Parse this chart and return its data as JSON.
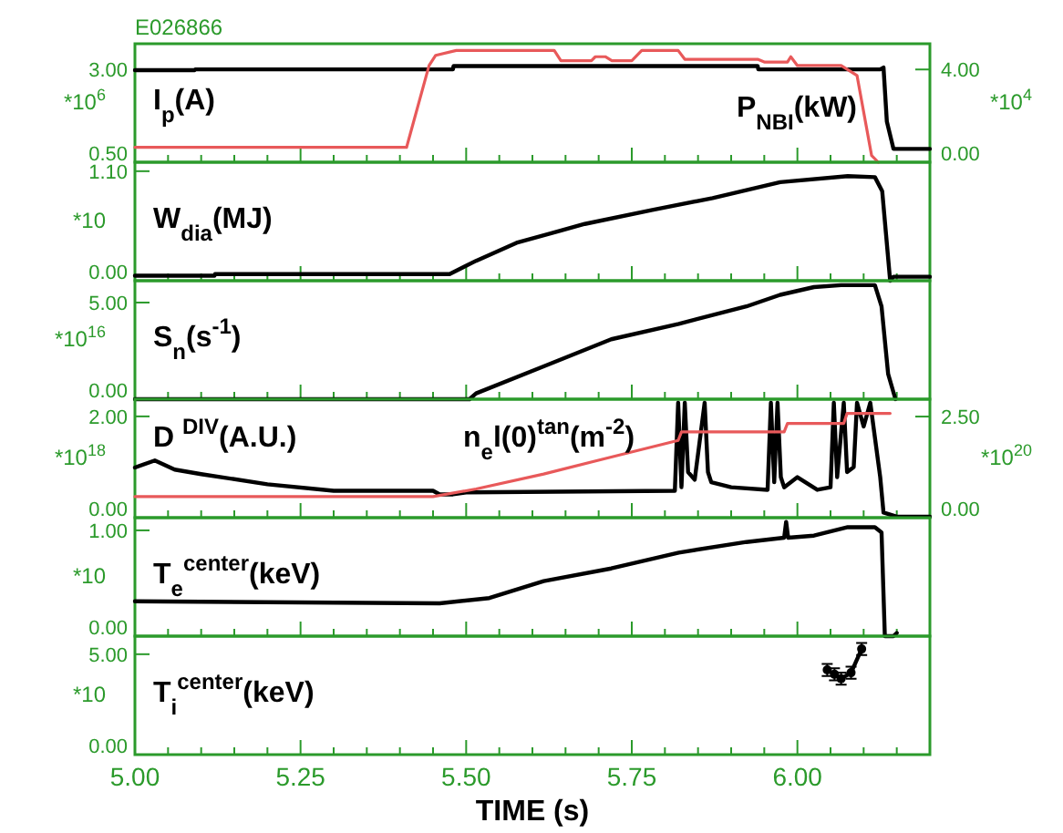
{
  "chart_data": [
    {
      "type": "line",
      "title": "E026866",
      "ylabel": "*10$^{6}$",
      "y2label": "*10$^{4}$",
      "annotations": [
        "I$_{p}$(A)",
        "P$_{NBI}$(kW)"
      ],
      "xlim": [
        5,
        6.2
      ],
      "xticks": [
        {
          "value": 5,
          "label": null
        },
        {
          "value": 5.05,
          "label": null
        },
        {
          "value": 5.1,
          "label": null
        },
        {
          "value": 5.15,
          "label": null
        },
        {
          "value": 5.2,
          "label": null
        },
        {
          "value": 5.25,
          "label": null
        },
        {
          "value": 5.3,
          "label": null
        },
        {
          "value": 5.35,
          "label": null
        },
        {
          "value": 5.4,
          "label": null
        },
        {
          "value": 5.45,
          "label": null
        },
        {
          "value": 5.5,
          "label": null
        },
        {
          "value": 5.55,
          "label": null
        },
        {
          "value": 5.6,
          "label": null
        },
        {
          "value": 5.65,
          "label": null
        },
        {
          "value": 5.7,
          "label": null
        },
        {
          "value": 5.75,
          "label": null
        },
        {
          "value": 5.8,
          "label": null
        },
        {
          "value": 5.85,
          "label": null
        },
        {
          "value": 5.9,
          "label": null
        },
        {
          "value": 5.95,
          "label": null
        },
        {
          "value": 6,
          "label": null
        },
        {
          "value": 6.05,
          "label": null
        },
        {
          "value": 6.1,
          "label": null
        },
        {
          "value": 6.15,
          "label": null
        }
      ],
      "ylim": [
        0.5,
        3.69
      ],
      "yticks": [
        {
          "value": 0.5,
          "label": "0.50"
        },
        {
          "value": 3,
          "label": "3.00"
        }
      ],
      "y2lim": [
        0,
        5.11
      ],
      "y2ticks": [
        {
          "value": 0,
          "label": "0.00"
        },
        {
          "value": 4,
          "label": "4.00"
        }
      ],
      "tick_labels": "y",
      "series": [
        {
          "color": "#000000",
          "x": [
            5.0,
            5.09,
            5.091,
            5.48,
            5.481,
            5.94,
            5.941,
            6.125,
            6.13,
            6.135,
            6.145,
            6.2
          ],
          "values": [
            2.98,
            2.98,
            3.0,
            3.0,
            3.09,
            3.09,
            3.0,
            3.0,
            3.05,
            1.6,
            0.86,
            0.86
          ]
        },
        {
          "color": "#e8595a",
          "axis": "y2",
          "x": [
            5.0,
            5.41,
            5.444,
            5.454,
            5.485,
            5.633,
            5.643,
            5.689,
            5.695,
            5.71,
            5.72,
            5.75,
            5.765,
            5.82,
            5.83,
            5.94,
            5.95,
            5.985,
            5.99,
            6.0,
            6.066,
            6.09,
            6.112,
            6.122
          ],
          "values": [
            0.64,
            0.64,
            4.17,
            4.61,
            4.82,
            4.82,
            4.38,
            4.38,
            4.55,
            4.55,
            4.38,
            4.38,
            4.82,
            4.82,
            4.44,
            4.44,
            4.32,
            4.32,
            4.55,
            4.17,
            4.17,
            3.74,
            0.29,
            0
          ]
        }
      ]
    },
    {
      "type": "line",
      "ylabel": "*10",
      "annotations": [
        "W$_{dia}$(MJ)"
      ],
      "xlim": [
        5,
        6.2
      ],
      "xticks": [
        {
          "value": 5,
          "label": null
        },
        {
          "value": 5.05,
          "label": null
        },
        {
          "value": 5.1,
          "label": null
        },
        {
          "value": 5.15,
          "label": null
        },
        {
          "value": 5.2,
          "label": null
        },
        {
          "value": 5.25,
          "label": null
        },
        {
          "value": 5.3,
          "label": null
        },
        {
          "value": 5.35,
          "label": null
        },
        {
          "value": 5.4,
          "label": null
        },
        {
          "value": 5.45,
          "label": null
        },
        {
          "value": 5.5,
          "label": null
        },
        {
          "value": 5.55,
          "label": null
        },
        {
          "value": 5.6,
          "label": null
        },
        {
          "value": 5.65,
          "label": null
        },
        {
          "value": 5.7,
          "label": null
        },
        {
          "value": 5.75,
          "label": null
        },
        {
          "value": 5.8,
          "label": null
        },
        {
          "value": 5.85,
          "label": null
        },
        {
          "value": 5.9,
          "label": null
        },
        {
          "value": 5.95,
          "label": null
        },
        {
          "value": 6,
          "label": null
        },
        {
          "value": 6.05,
          "label": null
        },
        {
          "value": 6.1,
          "label": null
        },
        {
          "value": 6.15,
          "label": null
        }
      ],
      "ylim": [
        0,
        1.19
      ],
      "yticks": [
        {
          "value": 0,
          "label": "0.00"
        },
        {
          "value": 1.1,
          "label": "1.10"
        }
      ],
      "tick_labels": "y",
      "series": [
        {
          "color": "#000000",
          "x": [
            5.0,
            5.12,
            5.121,
            5.475,
            5.515,
            5.576,
            5.679,
            5.781,
            5.872,
            5.974,
            6.076,
            6.117,
            6.128,
            6.14,
            6.145,
            6.2
          ],
          "values": [
            0.05,
            0.05,
            0.066,
            0.066,
            0.2,
            0.38,
            0.57,
            0.71,
            0.83,
            0.99,
            1.05,
            1.04,
            0.9,
            0.0,
            0.04,
            0.04
          ]
        }
      ]
    },
    {
      "type": "line",
      "ylabel": "*10$^{16}$",
      "annotations": [
        "S$_{n}$(s$^{-1}$)"
      ],
      "xlim": [
        5,
        6.2
      ],
      "xticks": [
        {
          "value": 5,
          "label": null
        },
        {
          "value": 5.05,
          "label": null
        },
        {
          "value": 5.1,
          "label": null
        },
        {
          "value": 5.15,
          "label": null
        },
        {
          "value": 5.2,
          "label": null
        },
        {
          "value": 5.25,
          "label": null
        },
        {
          "value": 5.3,
          "label": null
        },
        {
          "value": 5.35,
          "label": null
        },
        {
          "value": 5.4,
          "label": null
        },
        {
          "value": 5.45,
          "label": null
        },
        {
          "value": 5.5,
          "label": null
        },
        {
          "value": 5.55,
          "label": null
        },
        {
          "value": 5.6,
          "label": null
        },
        {
          "value": 5.65,
          "label": null
        },
        {
          "value": 5.7,
          "label": null
        },
        {
          "value": 5.75,
          "label": null
        },
        {
          "value": 5.8,
          "label": null
        },
        {
          "value": 5.85,
          "label": null
        },
        {
          "value": 5.9,
          "label": null
        },
        {
          "value": 5.95,
          "label": null
        },
        {
          "value": 6,
          "label": null
        },
        {
          "value": 6.05,
          "label": null
        },
        {
          "value": 6.1,
          "label": null
        },
        {
          "value": 6.15,
          "label": null
        }
      ],
      "ylim": [
        0,
        6.13
      ],
      "yticks": [
        {
          "value": 0,
          "label": "0.00"
        },
        {
          "value": 5,
          "label": "5.00"
        }
      ],
      "tick_labels": "y",
      "series": [
        {
          "color": "#000000",
          "x": [
            5.0,
            5.505,
            5.515,
            5.617,
            5.719,
            5.821,
            5.923,
            5.974,
            6.025,
            6.066,
            6.117,
            6.127,
            6.137,
            6.148
          ],
          "values": [
            0,
            0,
            0.3,
            1.7,
            3.1,
            3.9,
            4.8,
            5.4,
            5.8,
            5.9,
            5.9,
            4.8,
            1.3,
            0
          ]
        }
      ]
    },
    {
      "type": "line",
      "ylabel": "*10$^{18}$",
      "y2label": "*10$^{20}$",
      "annotations": [
        "D $^{DIV}$(A.U.)",
        "n$_{e}$l(0)$^{tan}$(m$^{-2}$)"
      ],
      "xlim": [
        5,
        6.2
      ],
      "xticks": [
        {
          "value": 5,
          "label": null
        },
        {
          "value": 5.05,
          "label": null
        },
        {
          "value": 5.1,
          "label": null
        },
        {
          "value": 5.15,
          "label": null
        },
        {
          "value": 5.2,
          "label": null
        },
        {
          "value": 5.25,
          "label": null
        },
        {
          "value": 5.3,
          "label": null
        },
        {
          "value": 5.35,
          "label": null
        },
        {
          "value": 5.4,
          "label": null
        },
        {
          "value": 5.45,
          "label": null
        },
        {
          "value": 5.5,
          "label": null
        },
        {
          "value": 5.55,
          "label": null
        },
        {
          "value": 5.6,
          "label": null
        },
        {
          "value": 5.65,
          "label": null
        },
        {
          "value": 5.7,
          "label": null
        },
        {
          "value": 5.75,
          "label": null
        },
        {
          "value": 5.8,
          "label": null
        },
        {
          "value": 5.85,
          "label": null
        },
        {
          "value": 5.9,
          "label": null
        },
        {
          "value": 5.95,
          "label": null
        },
        {
          "value": 6,
          "label": null
        },
        {
          "value": 6.05,
          "label": null
        },
        {
          "value": 6.1,
          "label": null
        },
        {
          "value": 6.15,
          "label": null
        }
      ],
      "ylim": [
        0,
        2.34
      ],
      "yticks": [
        {
          "value": 0,
          "label": "0.00"
        },
        {
          "value": 2,
          "label": "2.00"
        }
      ],
      "y2lim": [
        0,
        2.93
      ],
      "y2ticks": [
        {
          "value": 0,
          "label": "0.00"
        },
        {
          "value": 2.5,
          "label": "2.50"
        }
      ],
      "tick_labels": "y",
      "series": [
        {
          "color": "#000000",
          "x": [
            5.0,
            5.03,
            5.06,
            5.1,
            5.2,
            5.3,
            5.45,
            5.46,
            5.48,
            5.5,
            5.815,
            5.82,
            5.825,
            5.83,
            5.835,
            5.845,
            5.86,
            5.865,
            5.87,
            5.9,
            5.955,
            5.96,
            5.965,
            5.97,
            5.975,
            5.98,
            6.0,
            6.03,
            6.05,
            6.055,
            6.06,
            6.07,
            6.075,
            6.085,
            6.09,
            6.1,
            6.11,
            6.125,
            6.13,
            6.15,
            6.2
          ],
          "values": [
            0.99,
            1.13,
            0.95,
            0.86,
            0.66,
            0.53,
            0.53,
            0.46,
            0.46,
            0.5,
            0.53,
            2.27,
            0.6,
            2.27,
            0.9,
            0.75,
            2.27,
            0.9,
            0.7,
            0.6,
            0.55,
            2.27,
            0.7,
            2.27,
            0.8,
            0.6,
            0.8,
            0.55,
            0.6,
            2.27,
            0.8,
            2.27,
            0.9,
            1.0,
            2.27,
            1.8,
            2.27,
            0.8,
            0.1,
            0.02,
            0.02
          ]
        },
        {
          "color": "#e8595a",
          "axis": "y2",
          "x": [
            5.0,
            5.45,
            5.515,
            5.617,
            5.719,
            5.82,
            5.825,
            5.98,
            5.985,
            6.07,
            6.075,
            6.14
          ],
          "values": [
            0.52,
            0.52,
            0.71,
            1.08,
            1.5,
            1.91,
            2.12,
            2.12,
            2.33,
            2.33,
            2.58,
            2.58
          ]
        }
      ]
    },
    {
      "type": "line",
      "ylabel": "*10",
      "annotations": [
        "T$_{e}$$^{center}$(keV)"
      ],
      "xlim": [
        5,
        6.2
      ],
      "xticks": [
        {
          "value": 5,
          "label": null
        },
        {
          "value": 5.05,
          "label": null
        },
        {
          "value": 5.1,
          "label": null
        },
        {
          "value": 5.15,
          "label": null
        },
        {
          "value": 5.2,
          "label": null
        },
        {
          "value": 5.25,
          "label": null
        },
        {
          "value": 5.3,
          "label": null
        },
        {
          "value": 5.35,
          "label": null
        },
        {
          "value": 5.4,
          "label": null
        },
        {
          "value": 5.45,
          "label": null
        },
        {
          "value": 5.5,
          "label": null
        },
        {
          "value": 5.55,
          "label": null
        },
        {
          "value": 5.6,
          "label": null
        },
        {
          "value": 5.65,
          "label": null
        },
        {
          "value": 5.7,
          "label": null
        },
        {
          "value": 5.75,
          "label": null
        },
        {
          "value": 5.8,
          "label": null
        },
        {
          "value": 5.85,
          "label": null
        },
        {
          "value": 5.9,
          "label": null
        },
        {
          "value": 5.95,
          "label": null
        },
        {
          "value": 6,
          "label": null
        },
        {
          "value": 6.05,
          "label": null
        },
        {
          "value": 6.1,
          "label": null
        },
        {
          "value": 6.15,
          "label": null
        }
      ],
      "ylim": [
        0,
        1.12
      ],
      "yticks": [
        {
          "value": 0,
          "label": "0.00"
        },
        {
          "value": 1,
          "label": "1.00"
        }
      ],
      "tick_labels": "y",
      "series": [
        {
          "color": "#000000",
          "x": [
            5.0,
            5.46,
            5.535,
            5.617,
            5.719,
            5.821,
            5.923,
            5.98,
            5.983,
            5.986,
            6.025,
            6.076,
            6.117,
            6.127,
            6.132,
            6.145,
            6.15
          ],
          "values": [
            0.33,
            0.31,
            0.36,
            0.52,
            0.64,
            0.79,
            0.89,
            0.93,
            1.08,
            0.93,
            0.95,
            1.03,
            1.03,
            0.98,
            0,
            0,
            0.03
          ]
        }
      ]
    },
    {
      "type": "line",
      "ylabel": "*10",
      "xlabel": "TIME (s)",
      "annotations": [
        "T$_{i}$$^{center}$(keV)"
      ],
      "xlim": [
        5,
        6.2
      ],
      "xticks": [
        {
          "value": 5,
          "label": "5.00"
        },
        {
          "value": 5.05,
          "label": null
        },
        {
          "value": 5.1,
          "label": null
        },
        {
          "value": 5.15,
          "label": null
        },
        {
          "value": 5.2,
          "label": null
        },
        {
          "value": 5.25,
          "label": "5.25"
        },
        {
          "value": 5.3,
          "label": null
        },
        {
          "value": 5.35,
          "label": null
        },
        {
          "value": 5.4,
          "label": null
        },
        {
          "value": 5.45,
          "label": null
        },
        {
          "value": 5.5,
          "label": "5.50"
        },
        {
          "value": 5.55,
          "label": null
        },
        {
          "value": 5.6,
          "label": null
        },
        {
          "value": 5.65,
          "label": null
        },
        {
          "value": 5.7,
          "label": null
        },
        {
          "value": 5.75,
          "label": "5.75"
        },
        {
          "value": 5.8,
          "label": null
        },
        {
          "value": 5.85,
          "label": null
        },
        {
          "value": 5.9,
          "label": null
        },
        {
          "value": 5.95,
          "label": null
        },
        {
          "value": 6,
          "label": "6.00"
        },
        {
          "value": 6.05,
          "label": null
        },
        {
          "value": 6.1,
          "label": null
        },
        {
          "value": 6.15,
          "label": null
        }
      ],
      "ylim": [
        0,
        5.9
      ],
      "yticks": [
        {
          "value": 0,
          "label": "0.00"
        },
        {
          "value": 5,
          "label": "5.00"
        }
      ],
      "marker": "circle",
      "series": [
        {
          "color": "#000000",
          "x": [
            6.045,
            6.056,
            6.066,
            6.081,
            6.097
          ],
          "values": [
            4.22,
            4.0,
            3.78,
            4.08,
            5.26
          ],
          "errors": [
            0.3,
            0.3,
            0.3,
            0.3,
            0.3
          ]
        }
      ]
    }
  ]
}
